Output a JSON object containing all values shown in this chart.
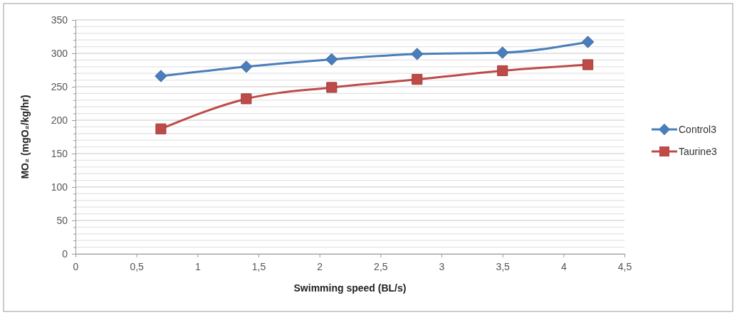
{
  "chart_data": {
    "type": "line",
    "xlabel": "Swimming speed (BL/s)",
    "ylabel": "MO₂ (mgO₂/kg/hr)",
    "xlim": [
      0,
      4.5
    ],
    "xticks": [
      0,
      {
        "value": 0.5,
        "label": "0,5"
      },
      1,
      {
        "value": 1.5,
        "label": "1,5"
      },
      2,
      {
        "value": 2.5,
        "label": "2,5"
      },
      3,
      {
        "value": 3.5,
        "label": "3,5"
      },
      4,
      {
        "value": 4.5,
        "label": "4,5"
      }
    ],
    "ylim": [
      0,
      350
    ],
    "yticks": [
      0,
      {
        "value": 10,
        "label": null
      },
      {
        "value": 20,
        "label": null
      },
      {
        "value": 30,
        "label": null
      },
      {
        "value": 40,
        "label": null
      },
      50,
      {
        "value": 60,
        "label": null
      },
      {
        "value": 70,
        "label": null
      },
      {
        "value": 80,
        "label": null
      },
      {
        "value": 90,
        "label": null
      },
      100,
      {
        "value": 110,
        "label": null
      },
      {
        "value": 120,
        "label": null
      },
      {
        "value": 130,
        "label": null
      },
      {
        "value": 140,
        "label": null
      },
      150,
      {
        "value": 160,
        "label": null
      },
      {
        "value": 170,
        "label": null
      },
      {
        "value": 180,
        "label": null
      },
      {
        "value": 190,
        "label": null
      },
      200,
      {
        "value": 210,
        "label": null
      },
      {
        "value": 220,
        "label": null
      },
      {
        "value": 230,
        "label": null
      },
      {
        "value": 240,
        "label": null
      },
      250,
      {
        "value": 260,
        "label": null
      },
      {
        "value": 270,
        "label": null
      },
      {
        "value": 280,
        "label": null
      },
      {
        "value": 290,
        "label": null
      },
      300,
      {
        "value": 310,
        "label": null
      },
      {
        "value": 320,
        "label": null
      },
      {
        "value": 330,
        "label": null
      },
      {
        "value": 340,
        "label": null
      },
      350
    ],
    "x": [
      0.7,
      1.4,
      2.1,
      2.8,
      3.5,
      4.2
    ],
    "grid": "y",
    "legend": "right",
    "series": [
      {
        "name": "Control3",
        "color": "#4a7ebb",
        "marker": "diamond",
        "values": [
          266,
          280,
          291,
          299,
          301,
          317
        ]
      },
      {
        "name": "Taurine3",
        "color": "#be4b48",
        "marker": "square",
        "values": [
          187,
          232,
          249,
          261,
          274,
          283
        ]
      }
    ]
  }
}
